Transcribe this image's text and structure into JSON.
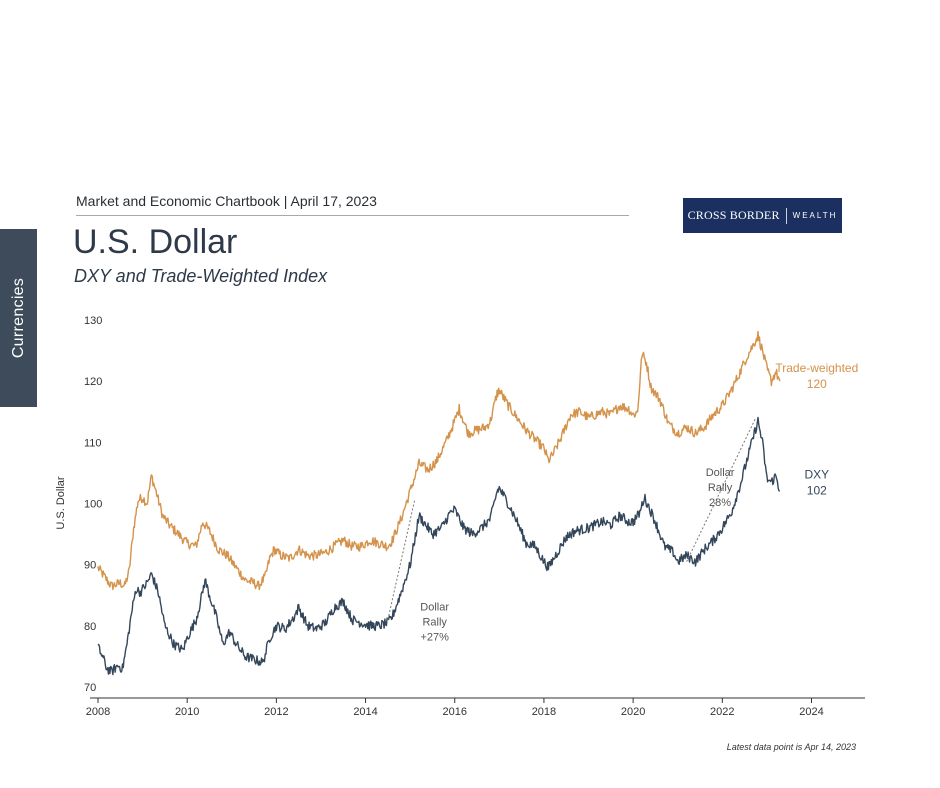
{
  "header": {
    "chartbook": "Market and Economic Chartbook | April 17, 2023",
    "logo_main": "CROSS BORDER",
    "logo_sub": "WEALTH"
  },
  "side_tab": {
    "label": "Currencies"
  },
  "note": "Latest data point is Apr 14, 2023",
  "chart_data": {
    "type": "line",
    "title": "U.S. Dollar",
    "subtitle": "DXY and Trade-Weighted Index",
    "ylabel": "U.S. Dollar",
    "xlabel": "",
    "xlim": [
      2008,
      2025.2
    ],
    "ylim": [
      70,
      130
    ],
    "x_ticks": [
      "2008",
      "2010",
      "2012",
      "2014",
      "2016",
      "2018",
      "2020",
      "2022",
      "2024"
    ],
    "y_ticks": [
      "70",
      "80",
      "90",
      "100",
      "110",
      "120",
      "130"
    ],
    "grid": false,
    "legend": "inline labels at line ends",
    "series": [
      {
        "name": "Trade-weighted",
        "end_label": "120",
        "color": "#d4924a",
        "points": [
          [
            2008.0,
            89.5
          ],
          [
            2008.15,
            88.0
          ],
          [
            2008.3,
            86.5
          ],
          [
            2008.5,
            87.0
          ],
          [
            2008.6,
            86.5
          ],
          [
            2008.7,
            89.0
          ],
          [
            2008.8,
            96.0
          ],
          [
            2008.9,
            100.5
          ],
          [
            2009.0,
            101.0
          ],
          [
            2009.1,
            100.0
          ],
          [
            2009.2,
            104.5
          ],
          [
            2009.3,
            102.0
          ],
          [
            2009.45,
            98.0
          ],
          [
            2009.6,
            96.5
          ],
          [
            2009.8,
            95.0
          ],
          [
            2010.0,
            93.5
          ],
          [
            2010.2,
            93.0
          ],
          [
            2010.35,
            97.0
          ],
          [
            2010.5,
            95.5
          ],
          [
            2010.7,
            92.5
          ],
          [
            2010.9,
            91.5
          ],
          [
            2011.1,
            89.5
          ],
          [
            2011.3,
            87.5
          ],
          [
            2011.5,
            87.0
          ],
          [
            2011.6,
            86.5
          ],
          [
            2011.75,
            88.0
          ],
          [
            2011.85,
            91.0
          ],
          [
            2011.95,
            92.5
          ],
          [
            2012.1,
            91.5
          ],
          [
            2012.3,
            91.0
          ],
          [
            2012.5,
            92.5
          ],
          [
            2012.7,
            91.5
          ],
          [
            2012.9,
            91.5
          ],
          [
            2013.1,
            92.0
          ],
          [
            2013.3,
            93.0
          ],
          [
            2013.5,
            94.0
          ],
          [
            2013.7,
            93.0
          ],
          [
            2013.9,
            93.0
          ],
          [
            2014.1,
            94.0
          ],
          [
            2014.3,
            93.5
          ],
          [
            2014.5,
            93.0
          ],
          [
            2014.6,
            94.0
          ],
          [
            2014.8,
            97.5
          ],
          [
            2015.0,
            102.0
          ],
          [
            2015.2,
            106.5
          ],
          [
            2015.4,
            105.5
          ],
          [
            2015.6,
            107.0
          ],
          [
            2015.8,
            110.0
          ],
          [
            2016.0,
            113.5
          ],
          [
            2016.1,
            115.5
          ],
          [
            2016.3,
            111.5
          ],
          [
            2016.5,
            112.0
          ],
          [
            2016.7,
            112.5
          ],
          [
            2016.8,
            113.5
          ],
          [
            2016.95,
            118.0
          ],
          [
            2017.0,
            118.5
          ],
          [
            2017.2,
            116.0
          ],
          [
            2017.4,
            114.0
          ],
          [
            2017.6,
            112.0
          ],
          [
            2017.8,
            110.5
          ],
          [
            2018.0,
            109.0
          ],
          [
            2018.1,
            107.0
          ],
          [
            2018.2,
            108.0
          ],
          [
            2018.4,
            111.0
          ],
          [
            2018.6,
            114.5
          ],
          [
            2018.8,
            115.0
          ],
          [
            2019.0,
            114.0
          ],
          [
            2019.3,
            115.0
          ],
          [
            2019.5,
            114.5
          ],
          [
            2019.7,
            116.0
          ],
          [
            2019.9,
            115.5
          ],
          [
            2020.0,
            114.5
          ],
          [
            2020.1,
            115.0
          ],
          [
            2020.2,
            124.5
          ],
          [
            2020.3,
            123.0
          ],
          [
            2020.4,
            119.0
          ],
          [
            2020.6,
            117.0
          ],
          [
            2020.8,
            113.0
          ],
          [
            2021.0,
            111.5
          ],
          [
            2021.2,
            112.5
          ],
          [
            2021.4,
            111.5
          ],
          [
            2021.6,
            112.5
          ],
          [
            2021.8,
            114.5
          ],
          [
            2022.0,
            116.0
          ],
          [
            2022.2,
            118.5
          ],
          [
            2022.4,
            121.5
          ],
          [
            2022.55,
            124.0
          ],
          [
            2022.7,
            126.0
          ],
          [
            2022.8,
            127.5
          ],
          [
            2022.9,
            125.0
          ],
          [
            2023.0,
            122.0
          ],
          [
            2023.1,
            120.0
          ],
          [
            2023.2,
            121.5
          ],
          [
            2023.29,
            120.0
          ]
        ]
      },
      {
        "name": "DXY",
        "end_label": "102",
        "color": "#34475a",
        "points": [
          [
            2008.0,
            76.5
          ],
          [
            2008.1,
            75.0
          ],
          [
            2008.2,
            73.0
          ],
          [
            2008.3,
            72.5
          ],
          [
            2008.45,
            73.5
          ],
          [
            2008.55,
            73.0
          ],
          [
            2008.65,
            77.0
          ],
          [
            2008.75,
            82.0
          ],
          [
            2008.85,
            86.0
          ],
          [
            2008.95,
            85.5
          ],
          [
            2009.1,
            87.0
          ],
          [
            2009.2,
            88.5
          ],
          [
            2009.35,
            85.5
          ],
          [
            2009.5,
            80.0
          ],
          [
            2009.7,
            77.0
          ],
          [
            2009.9,
            76.0
          ],
          [
            2010.0,
            78.0
          ],
          [
            2010.2,
            81.0
          ],
          [
            2010.3,
            84.0
          ],
          [
            2010.4,
            87.5
          ],
          [
            2010.5,
            85.0
          ],
          [
            2010.65,
            81.5
          ],
          [
            2010.8,
            77.0
          ],
          [
            2010.95,
            79.0
          ],
          [
            2011.1,
            77.0
          ],
          [
            2011.3,
            75.0
          ],
          [
            2011.5,
            74.5
          ],
          [
            2011.7,
            74.0
          ],
          [
            2011.85,
            78.0
          ],
          [
            2012.0,
            80.0
          ],
          [
            2012.2,
            79.5
          ],
          [
            2012.4,
            81.5
          ],
          [
            2012.5,
            83.0
          ],
          [
            2012.7,
            80.0
          ],
          [
            2012.9,
            79.5
          ],
          [
            2013.1,
            80.5
          ],
          [
            2013.3,
            83.0
          ],
          [
            2013.5,
            84.0
          ],
          [
            2013.7,
            81.0
          ],
          [
            2013.9,
            80.5
          ],
          [
            2014.1,
            80.0
          ],
          [
            2014.3,
            80.0
          ],
          [
            2014.5,
            80.5
          ],
          [
            2014.6,
            81.5
          ],
          [
            2014.8,
            85.5
          ],
          [
            2015.0,
            90.0
          ],
          [
            2015.2,
            98.0
          ],
          [
            2015.3,
            97.0
          ],
          [
            2015.5,
            95.0
          ],
          [
            2015.7,
            96.0
          ],
          [
            2015.9,
            98.5
          ],
          [
            2016.0,
            99.0
          ],
          [
            2016.2,
            96.0
          ],
          [
            2016.4,
            95.0
          ],
          [
            2016.6,
            96.0
          ],
          [
            2016.8,
            97.5
          ],
          [
            2016.95,
            102.0
          ],
          [
            2017.0,
            102.5
          ],
          [
            2017.2,
            100.0
          ],
          [
            2017.4,
            97.0
          ],
          [
            2017.6,
            93.5
          ],
          [
            2017.8,
            93.0
          ],
          [
            2018.0,
            90.5
          ],
          [
            2018.1,
            89.5
          ],
          [
            2018.3,
            92.0
          ],
          [
            2018.5,
            94.5
          ],
          [
            2018.7,
            95.5
          ],
          [
            2019.0,
            96.0
          ],
          [
            2019.3,
            97.0
          ],
          [
            2019.5,
            96.5
          ],
          [
            2019.7,
            98.0
          ],
          [
            2019.9,
            97.0
          ],
          [
            2020.0,
            97.0
          ],
          [
            2020.15,
            98.5
          ],
          [
            2020.25,
            101.0
          ],
          [
            2020.35,
            99.5
          ],
          [
            2020.5,
            97.0
          ],
          [
            2020.7,
            93.0
          ],
          [
            2020.9,
            92.0
          ],
          [
            2021.0,
            90.5
          ],
          [
            2021.2,
            91.5
          ],
          [
            2021.4,
            90.5
          ],
          [
            2021.6,
            92.5
          ],
          [
            2021.8,
            94.0
          ],
          [
            2022.0,
            96.0
          ],
          [
            2022.2,
            98.5
          ],
          [
            2022.4,
            103.0
          ],
          [
            2022.55,
            107.0
          ],
          [
            2022.7,
            111.0
          ],
          [
            2022.8,
            113.5
          ],
          [
            2022.9,
            110.0
          ],
          [
            2023.0,
            104.0
          ],
          [
            2023.1,
            103.5
          ],
          [
            2023.2,
            104.5
          ],
          [
            2023.29,
            102.0
          ]
        ]
      }
    ],
    "annotations": [
      {
        "text": [
          "Dollar",
          "Rally",
          "+27%"
        ],
        "from": [
          2014.5,
          81.0
        ],
        "to": [
          2015.1,
          100.5
        ],
        "label_at": [
          2015.55,
          82.5
        ]
      },
      {
        "text": [
          "Dollar",
          "Rally",
          "28%"
        ],
        "from": [
          2021.2,
          90.5
        ],
        "to": [
          2022.75,
          114.0
        ],
        "label_at": [
          2021.95,
          104.5
        ]
      }
    ]
  }
}
